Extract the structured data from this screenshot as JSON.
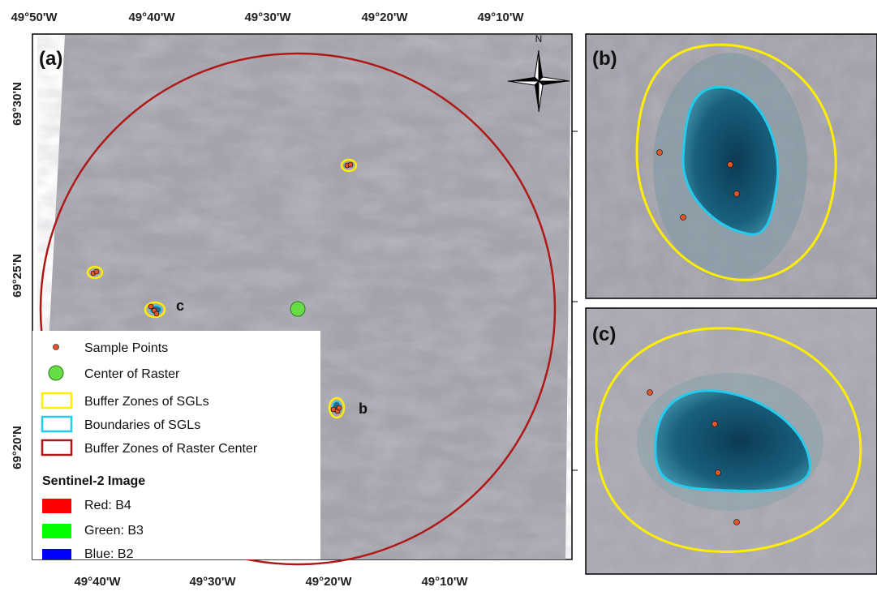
{
  "panels": {
    "a": "(a)",
    "b": "(b)",
    "c": "(c)"
  },
  "top_labels": [
    "49°50'W",
    "49°40'W",
    "49°30'W",
    "49°20'W",
    "49°10'W"
  ],
  "bottom_labels": [
    "49°40'W",
    "49°30'W",
    "49°20'W",
    "49°10'W"
  ],
  "left_labels": [
    "69°30'N",
    "69°25'N",
    "69°20'N"
  ],
  "north": "N",
  "map_labels": {
    "c": "c",
    "b": "b"
  },
  "legend": {
    "items": [
      "Sample Points",
      "Center of Raster",
      "Buffer Zones of SGLs",
      "Boundaries of SGLs",
      "Buffer Zones of Raster Center"
    ],
    "title": "Sentinel-2 Image",
    "bands": [
      "Red: B4",
      "Green: B3",
      "Blue: B2"
    ]
  }
}
